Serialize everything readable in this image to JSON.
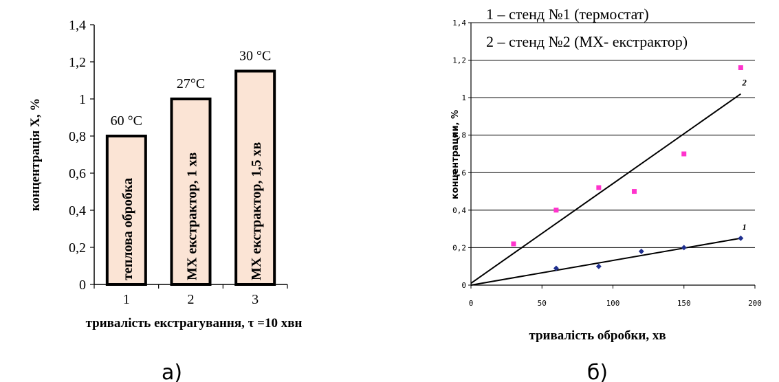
{
  "chart_data": [
    {
      "type": "bar",
      "panel_label": "а)",
      "ylabel": "концентрація Х, %",
      "xlabel": "тривалість екстрагування, τ =10 хвн",
      "ylim": [
        0,
        1.4
      ],
      "y_ticks": [
        "0",
        "0,2",
        "0,4",
        "0,6",
        "0,8",
        "1",
        "1,2",
        "1,4"
      ],
      "categories": [
        "1",
        "2",
        "3"
      ],
      "values": [
        0.8,
        1.0,
        1.15
      ],
      "bar_color": "#fbe4d5",
      "bar_labels": [
        "теплова обробка",
        "МХ екстрактор, 1 хв",
        "МХ екстрактор, 1,5 хв"
      ],
      "temp_labels": [
        "60 °С",
        "27°С",
        "30 °С"
      ],
      "grid": false
    },
    {
      "type": "scatter",
      "panel_label": "б)",
      "ylabel": "концентрации, %",
      "xlabel": "тривалість обробки, хв",
      "xlim": [
        0,
        200
      ],
      "ylim": [
        0,
        1.4
      ],
      "x_ticks": [
        "0",
        "50",
        "100",
        "150",
        "200"
      ],
      "y_ticks": [
        "0",
        "0,2",
        "0,4",
        "0,6",
        "0,8",
        "1",
        "1,2",
        "1,4"
      ],
      "grid": true,
      "legend": [
        "1 – стенд №1 (термостат)",
        "2 – стенд №2 (МХ- екстрактор)"
      ],
      "series": [
        {
          "name": "1",
          "color": "#1f2f8f",
          "marker": "diamond",
          "x": [
            60,
            90,
            120,
            150,
            190
          ],
          "y": [
            0.09,
            0.1,
            0.18,
            0.2,
            0.25
          ],
          "trend": [
            [
              0,
              0
            ],
            [
              190,
              0.25
            ]
          ]
        },
        {
          "name": "2",
          "color": "#ff33cc",
          "marker": "square",
          "x": [
            30,
            60,
            90,
            115,
            150,
            190
          ],
          "y": [
            0.22,
            0.4,
            0.52,
            0.5,
            0.7,
            1.16
          ],
          "trend": [
            [
              0,
              0.01
            ],
            [
              190,
              1.02
            ]
          ]
        }
      ]
    }
  ]
}
